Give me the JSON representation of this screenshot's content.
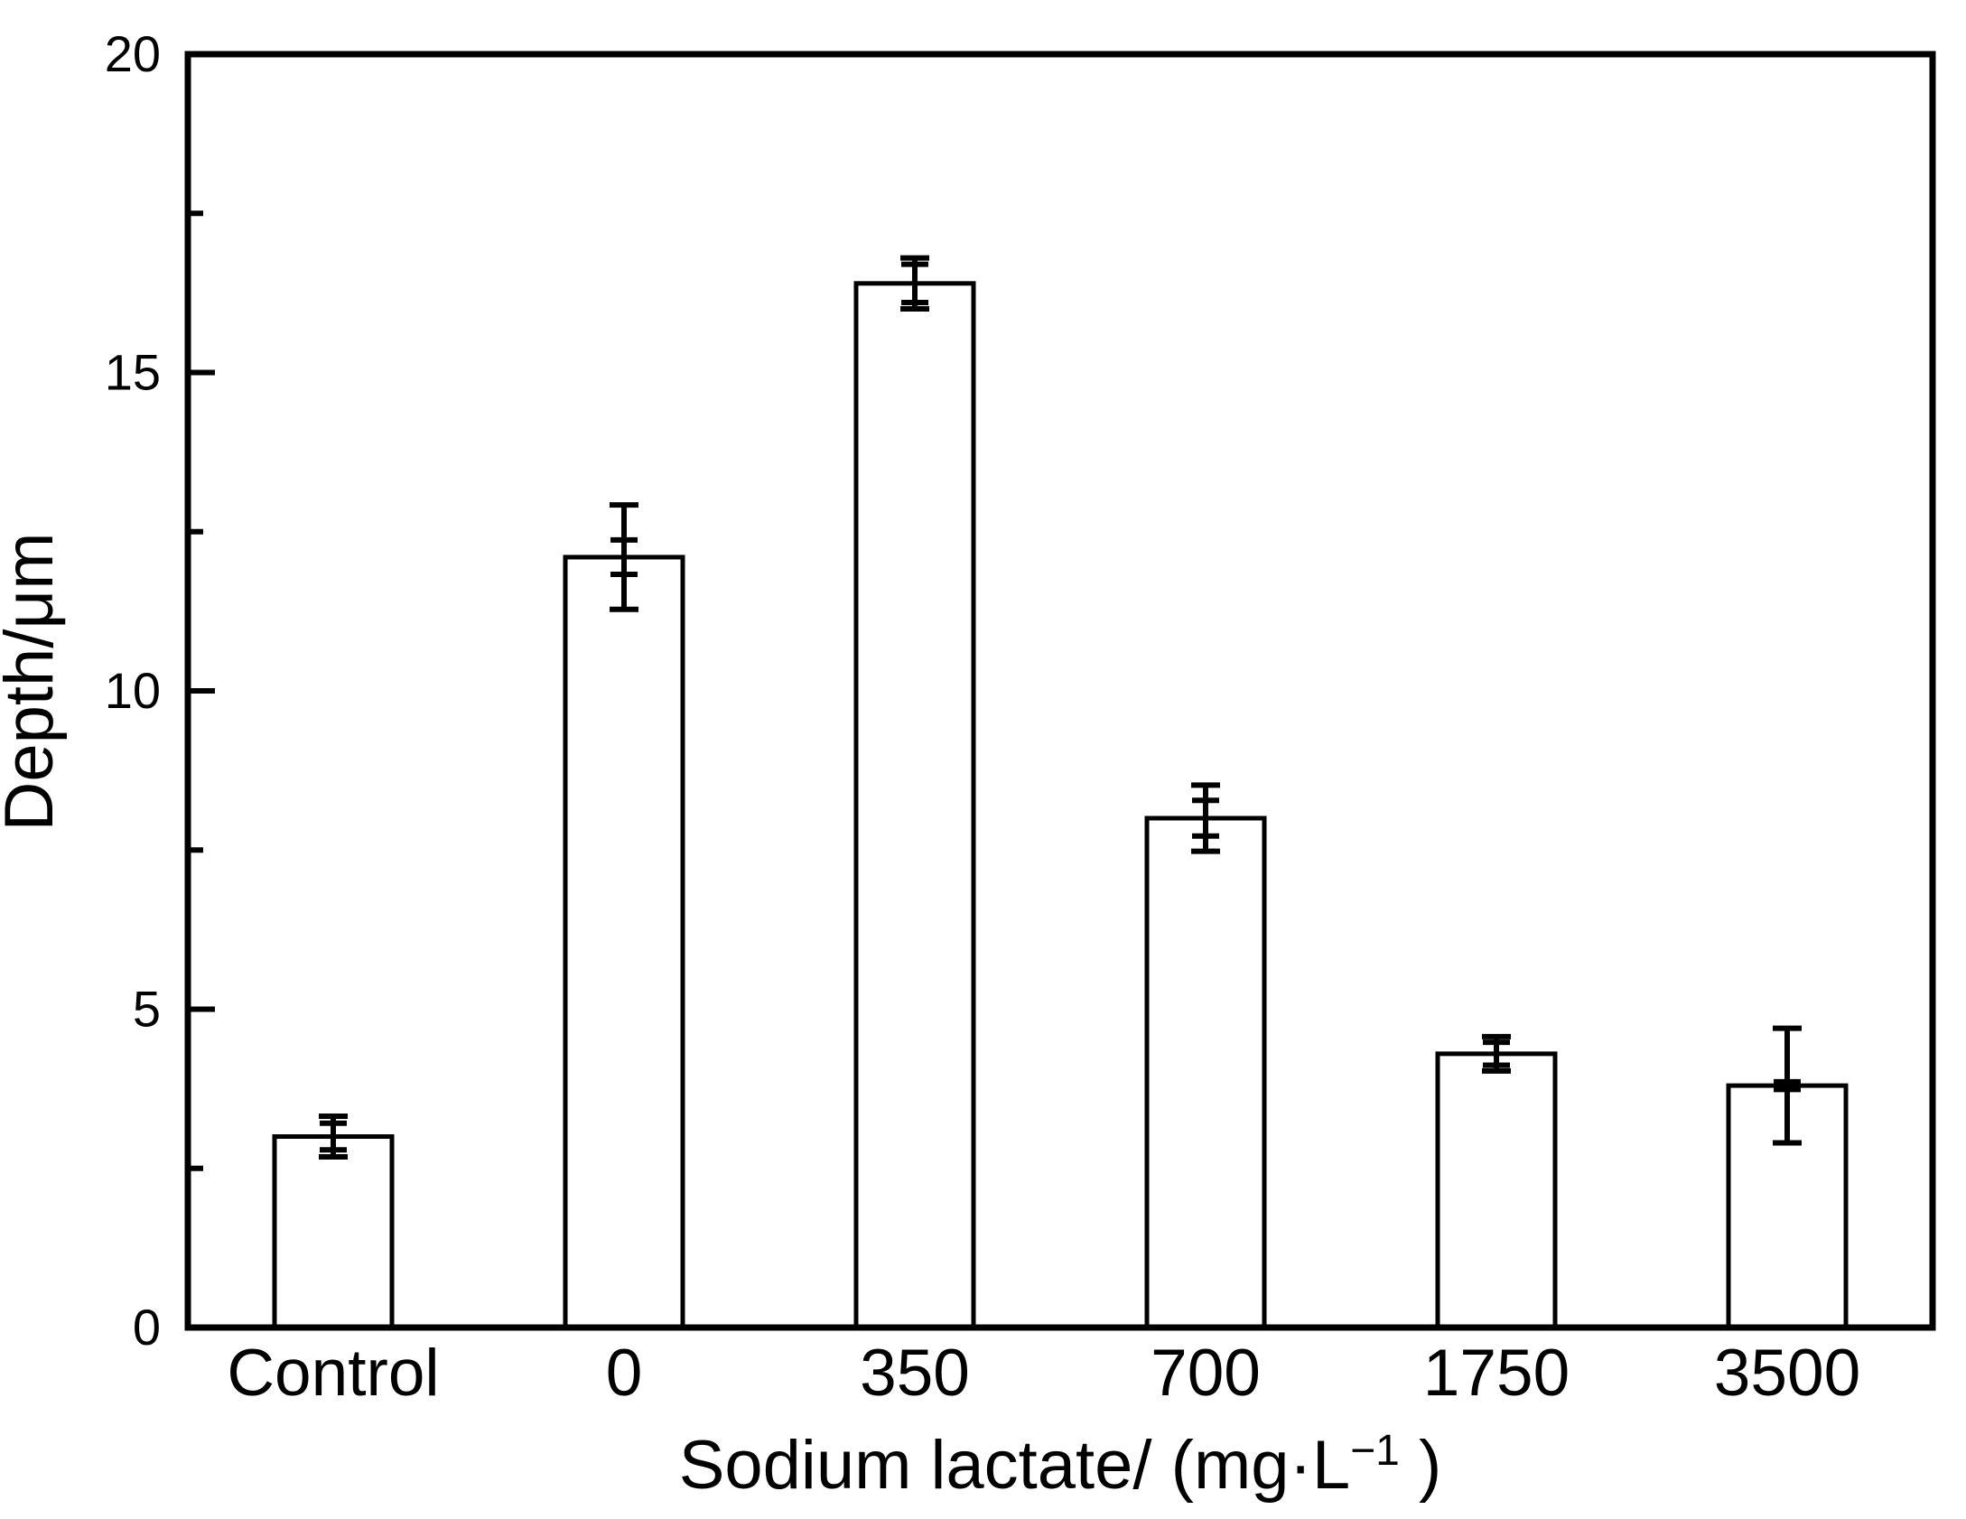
{
  "figure": {
    "background": "#ffffff",
    "line_color": "#000000",
    "text_color": "#000000"
  },
  "chart_data": {
    "type": "bar",
    "title": "",
    "categories": [
      "Control",
      "0",
      "350",
      "700",
      "1750",
      "3500"
    ],
    "values": [
      3.0,
      12.1,
      16.4,
      8.0,
      4.3,
      3.8
    ],
    "error_bars_outer": [
      0.32,
      0.82,
      0.4,
      0.52,
      0.27,
      0.9
    ],
    "error_bars_inner": [
      0.21,
      0.27,
      0.3,
      0.28,
      0.18,
      0.06
    ],
    "xlabel": "Sodium lactate/（mg·L⁻¹）",
    "xlabel_parts": {
      "prefix": "Sodium lactate/ (mg·L",
      "superscript": "−1",
      "suffix": " )"
    },
    "ylabel": "Depth/μm",
    "ylim": [
      0,
      20
    ],
    "y_major_ticks": [
      0,
      5,
      10,
      15,
      20
    ],
    "y_minor_tick_step": 2.5,
    "bar_fill": "#ffffff",
    "bar_edge_color": "#000000",
    "legend_position": "none",
    "grid": false
  }
}
